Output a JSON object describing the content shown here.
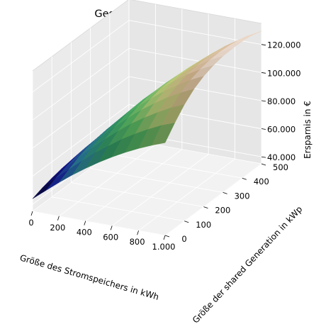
{
  "chart_data": {
    "type": "surface",
    "title": "Gesamte Ersparnis",
    "xlabel": "Größe des Stromspeichers in kWh",
    "ylabel": "Größe der shared Generation in kWp",
    "zlabel": "Ersparnis in €",
    "x_ticks": [
      "0",
      "200",
      "400",
      "600",
      "800",
      "1.000"
    ],
    "y_ticks": [
      "0",
      "100",
      "200",
      "300",
      "400",
      "500"
    ],
    "z_ticks": [
      "40.000",
      "60.000",
      "80.000",
      "100.000",
      "120.000"
    ],
    "xlim": [
      0,
      1000
    ],
    "ylim": [
      0,
      500
    ],
    "zlim": [
      35000,
      135000
    ],
    "x": [
      0,
      100,
      200,
      300,
      400,
      500,
      600,
      700,
      800,
      900,
      1000
    ],
    "y": [
      0,
      50,
      100,
      150,
      200,
      250,
      300,
      350,
      400,
      450,
      500
    ],
    "z": [
      [
        44000,
        51500,
        59000,
        66000,
        72500,
        78500,
        84000,
        89000,
        93500,
        97500,
        101000
      ],
      [
        46500,
        55000,
        63000,
        71000,
        78500,
        85000,
        91500,
        97000,
        102000,
        106500,
        110000
      ],
      [
        48500,
        57500,
        66500,
        75000,
        83000,
        90500,
        97500,
        103500,
        109000,
        114000,
        118000
      ],
      [
        50000,
        59500,
        69000,
        78000,
        86500,
        94500,
        102000,
        108500,
        114500,
        119500,
        124000
      ],
      [
        51000,
        61000,
        70500,
        80000,
        89000,
        97500,
        105000,
        112000,
        118000,
        123500,
        128000
      ],
      [
        51500,
        61500,
        71500,
        81000,
        90500,
        99000,
        107000,
        114000,
        120500,
        126000,
        130500
      ],
      [
        51500,
        61500,
        71500,
        81500,
        91000,
        99500,
        107500,
        115000,
        121500,
        127500,
        132000
      ],
      [
        51000,
        61000,
        71000,
        81000,
        90500,
        99500,
        107500,
        115000,
        122000,
        128000,
        132500
      ],
      [
        50000,
        60000,
        70000,
        80000,
        89500,
        98500,
        107000,
        114500,
        121500,
        127500,
        132500
      ],
      [
        48500,
        58500,
        68500,
        78500,
        88000,
        97000,
        105500,
        113500,
        120500,
        126500,
        131500
      ],
      [
        46500,
        56500,
        66500,
        76500,
        86000,
        95000,
        103500,
        111500,
        118500,
        124500,
        129500
      ]
    ],
    "colormap": "gist_earth",
    "grid": true
  }
}
